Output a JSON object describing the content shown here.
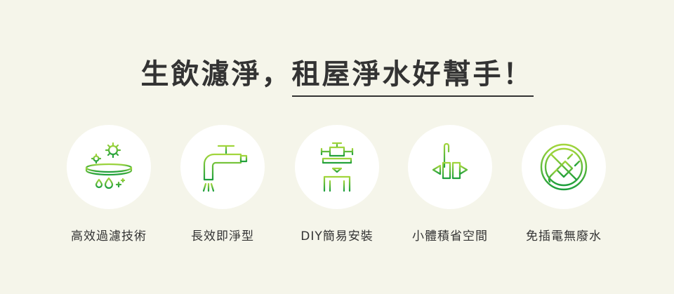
{
  "headline": {
    "part1": "生飲濾淨，",
    "part2": "租屋淨水好幫手！"
  },
  "colors": {
    "background": "#f5f5ea",
    "icon_green_light": "#a3d63c",
    "icon_green_dark": "#1e9f3c",
    "text": "#333333"
  },
  "features": [
    {
      "icon": "filtration-tech-icon",
      "label": "高效過濾技術"
    },
    {
      "icon": "faucet-icon",
      "label": "長效即淨型"
    },
    {
      "icon": "diy-install-icon",
      "label": "DIY簡易安裝"
    },
    {
      "icon": "compact-size-icon",
      "label": "小體積省空間"
    },
    {
      "icon": "no-plug-icon",
      "label": "免插電無廢水"
    }
  ]
}
